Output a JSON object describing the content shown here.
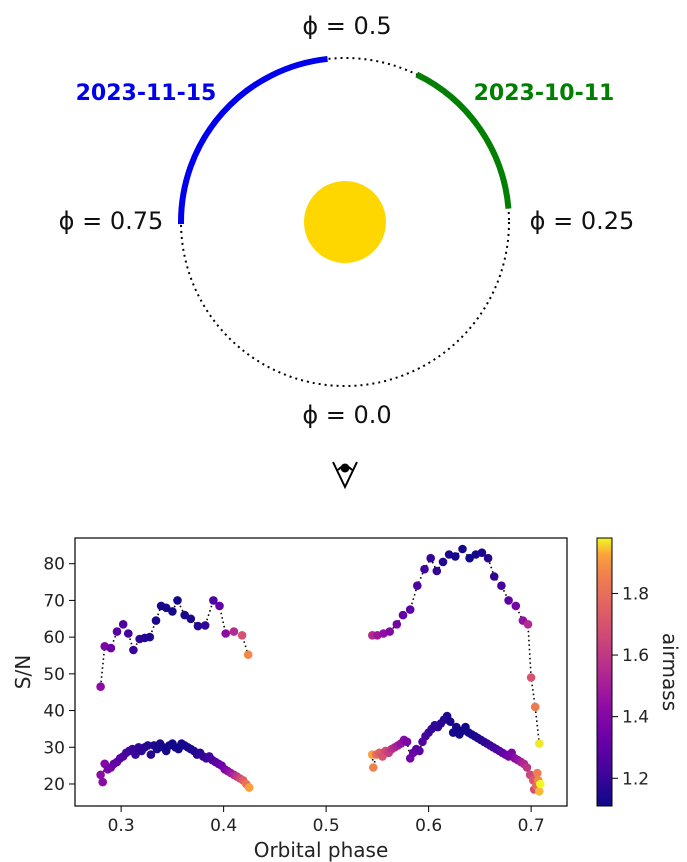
{
  "orbit_diagram": {
    "phase_labels": [
      {
        "id": "top",
        "text": "ϕ = 0.5"
      },
      {
        "id": "right",
        "text": "ϕ = 0.25"
      },
      {
        "id": "bottom",
        "text": "ϕ = 0.0"
      },
      {
        "id": "left",
        "text": "ϕ = 0.75"
      }
    ],
    "observations": [
      {
        "date": "2023-11-15",
        "color": "#0000ee",
        "phase_start": 0.517,
        "phase_end": 0.752
      },
      {
        "date": "2023-10-11",
        "color": "#007f00",
        "phase_start": 0.263,
        "phase_end": 0.428
      }
    ],
    "star_color": "#ffd700",
    "observer_icon": "observer-eye-icon"
  },
  "chart_data": {
    "type": "scatter",
    "xlabel": "Orbital phase",
    "ylabel": "S/N",
    "xlim": [
      0.255,
      0.735
    ],
    "ylim": [
      14,
      87
    ],
    "xticks": [
      0.3,
      0.4,
      0.5,
      0.6,
      0.7
    ],
    "yticks": [
      20,
      30,
      40,
      50,
      60,
      70,
      80
    ],
    "colorbar": {
      "label": "airmass",
      "colormap": "plasma",
      "range": [
        1.11,
        1.98
      ],
      "ticks": [
        1.2,
        1.4,
        1.6,
        1.8
      ]
    },
    "series": [
      {
        "values": [
          [
            0.28,
            46.5,
            1.43
          ],
          [
            0.284,
            57.5,
            1.38
          ],
          [
            0.29,
            57.0,
            1.33
          ],
          [
            0.296,
            61.5,
            1.28
          ],
          [
            0.302,
            63.5,
            1.25
          ],
          [
            0.307,
            61.0,
            1.22
          ],
          [
            0.312,
            56.5,
            1.2
          ],
          [
            0.318,
            59.5,
            1.18
          ],
          [
            0.323,
            59.8,
            1.16
          ],
          [
            0.328,
            60.0,
            1.15
          ],
          [
            0.334,
            64.5,
            1.14
          ],
          [
            0.339,
            68.5,
            1.13
          ],
          [
            0.344,
            68.0,
            1.13
          ],
          [
            0.35,
            67.0,
            1.12
          ],
          [
            0.355,
            70.0,
            1.12
          ],
          [
            0.362,
            66.0,
            1.13
          ],
          [
            0.368,
            65.0,
            1.14
          ],
          [
            0.375,
            63.0,
            1.16
          ],
          [
            0.382,
            63.2,
            1.19
          ],
          [
            0.39,
            70.0,
            1.25
          ],
          [
            0.396,
            68.5,
            1.31
          ],
          [
            0.402,
            61.0,
            1.42
          ],
          [
            0.41,
            61.5,
            1.55
          ],
          [
            0.418,
            60.5,
            1.7
          ],
          [
            0.424,
            55.2,
            1.88
          ]
        ]
      },
      {
        "values": [
          [
            0.28,
            22.5,
            1.43
          ],
          [
            0.282,
            20.5,
            1.42
          ],
          [
            0.284,
            25.5,
            1.4
          ],
          [
            0.287,
            24.0,
            1.37
          ],
          [
            0.29,
            24.5,
            1.35
          ],
          [
            0.293,
            25.5,
            1.32
          ],
          [
            0.296,
            26.0,
            1.3
          ],
          [
            0.299,
            27.0,
            1.28
          ],
          [
            0.302,
            27.5,
            1.26
          ],
          [
            0.305,
            28.5,
            1.24
          ],
          [
            0.308,
            29.0,
            1.23
          ],
          [
            0.311,
            29.5,
            1.21
          ],
          [
            0.314,
            28.0,
            1.2
          ],
          [
            0.317,
            30.0,
            1.19
          ],
          [
            0.32,
            29.0,
            1.18
          ],
          [
            0.323,
            30.0,
            1.17
          ],
          [
            0.326,
            30.5,
            1.16
          ],
          [
            0.329,
            28.0,
            1.16
          ],
          [
            0.332,
            30.5,
            1.15
          ],
          [
            0.335,
            29.5,
            1.14
          ],
          [
            0.338,
            31.0,
            1.14
          ],
          [
            0.341,
            30.0,
            1.13
          ],
          [
            0.344,
            29.0,
            1.13
          ],
          [
            0.347,
            30.5,
            1.13
          ],
          [
            0.35,
            31.0,
            1.12
          ],
          [
            0.353,
            30.0,
            1.12
          ],
          [
            0.356,
            29.5,
            1.12
          ],
          [
            0.359,
            31.0,
            1.12
          ],
          [
            0.362,
            30.5,
            1.13
          ],
          [
            0.365,
            30.0,
            1.13
          ],
          [
            0.368,
            29.5,
            1.14
          ],
          [
            0.371,
            29.0,
            1.15
          ],
          [
            0.374,
            28.0,
            1.16
          ],
          [
            0.377,
            28.5,
            1.17
          ],
          [
            0.38,
            27.5,
            1.18
          ],
          [
            0.383,
            27.0,
            1.2
          ],
          [
            0.386,
            27.5,
            1.22
          ],
          [
            0.389,
            26.5,
            1.24
          ],
          [
            0.392,
            26.0,
            1.27
          ],
          [
            0.395,
            25.5,
            1.3
          ],
          [
            0.398,
            25.0,
            1.33
          ],
          [
            0.401,
            24.0,
            1.37
          ],
          [
            0.404,
            23.5,
            1.42
          ],
          [
            0.407,
            23.0,
            1.47
          ],
          [
            0.41,
            22.5,
            1.53
          ],
          [
            0.413,
            22.0,
            1.6
          ],
          [
            0.416,
            21.5,
            1.67
          ],
          [
            0.419,
            21.0,
            1.74
          ],
          [
            0.422,
            20.0,
            1.82
          ],
          [
            0.425,
            19.0,
            1.92
          ]
        ]
      },
      {
        "values": [
          [
            0.545,
            60.5,
            1.55
          ],
          [
            0.55,
            60.5,
            1.48
          ],
          [
            0.556,
            61.0,
            1.44
          ],
          [
            0.562,
            61.5,
            1.4
          ],
          [
            0.569,
            63.5,
            1.36
          ],
          [
            0.575,
            66.0,
            1.32
          ],
          [
            0.582,
            67.5,
            1.29
          ],
          [
            0.589,
            74.0,
            1.25
          ],
          [
            0.596,
            78.5,
            1.22
          ],
          [
            0.602,
            81.5,
            1.2
          ],
          [
            0.608,
            78.0,
            1.18
          ],
          [
            0.614,
            80.5,
            1.16
          ],
          [
            0.62,
            82.5,
            1.14
          ],
          [
            0.626,
            82.0,
            1.13
          ],
          [
            0.633,
            84.0,
            1.12
          ],
          [
            0.64,
            81.5,
            1.12
          ],
          [
            0.646,
            82.5,
            1.13
          ],
          [
            0.652,
            83.0,
            1.14
          ],
          [
            0.658,
            81.5,
            1.16
          ],
          [
            0.664,
            76.5,
            1.19
          ],
          [
            0.671,
            74.0,
            1.23
          ],
          [
            0.678,
            70.0,
            1.29
          ],
          [
            0.685,
            68.5,
            1.36
          ],
          [
            0.692,
            64.5,
            1.45
          ],
          [
            0.697,
            63.5,
            1.55
          ],
          [
            0.7,
            49.0,
            1.7
          ],
          [
            0.704,
            41.0,
            1.84
          ],
          [
            0.708,
            31.0,
            1.97
          ]
        ]
      },
      {
        "values": [
          [
            0.545,
            28.0,
            1.92
          ],
          [
            0.546,
            24.5,
            1.86
          ],
          [
            0.549,
            28.0,
            1.8
          ],
          [
            0.552,
            28.5,
            1.74
          ],
          [
            0.555,
            27.5,
            1.7
          ],
          [
            0.558,
            29.0,
            1.66
          ],
          [
            0.561,
            28.5,
            1.62
          ],
          [
            0.564,
            29.5,
            1.58
          ],
          [
            0.567,
            30.0,
            1.54
          ],
          [
            0.57,
            30.5,
            1.5
          ],
          [
            0.573,
            31.0,
            1.46
          ],
          [
            0.576,
            32.0,
            1.42
          ],
          [
            0.579,
            31.5,
            1.38
          ],
          [
            0.582,
            27.0,
            1.35
          ],
          [
            0.585,
            28.5,
            1.33
          ],
          [
            0.588,
            29.5,
            1.3
          ],
          [
            0.591,
            29.0,
            1.28
          ],
          [
            0.594,
            31.5,
            1.26
          ],
          [
            0.597,
            33.0,
            1.24
          ],
          [
            0.6,
            34.0,
            1.22
          ],
          [
            0.603,
            35.0,
            1.2
          ],
          [
            0.606,
            36.0,
            1.19
          ],
          [
            0.609,
            35.5,
            1.18
          ],
          [
            0.612,
            36.5,
            1.17
          ],
          [
            0.615,
            37.5,
            1.16
          ],
          [
            0.618,
            38.5,
            1.15
          ],
          [
            0.621,
            37.0,
            1.14
          ],
          [
            0.624,
            34.0,
            1.13
          ],
          [
            0.627,
            35.5,
            1.13
          ],
          [
            0.63,
            33.5,
            1.12
          ],
          [
            0.633,
            34.5,
            1.12
          ],
          [
            0.636,
            35.5,
            1.12
          ],
          [
            0.639,
            34.0,
            1.13
          ],
          [
            0.642,
            33.5,
            1.13
          ],
          [
            0.645,
            33.0,
            1.14
          ],
          [
            0.648,
            32.5,
            1.15
          ],
          [
            0.651,
            32.0,
            1.16
          ],
          [
            0.654,
            31.5,
            1.17
          ],
          [
            0.657,
            31.0,
            1.18
          ],
          [
            0.66,
            30.5,
            1.2
          ],
          [
            0.663,
            30.0,
            1.22
          ],
          [
            0.666,
            29.5,
            1.24
          ],
          [
            0.669,
            29.0,
            1.26
          ],
          [
            0.672,
            28.5,
            1.29
          ],
          [
            0.675,
            28.0,
            1.32
          ],
          [
            0.678,
            27.5,
            1.35
          ],
          [
            0.681,
            28.5,
            1.38
          ],
          [
            0.684,
            27.0,
            1.41
          ],
          [
            0.687,
            26.5,
            1.45
          ],
          [
            0.69,
            26.0,
            1.49
          ],
          [
            0.693,
            25.5,
            1.54
          ],
          [
            0.696,
            24.5,
            1.59
          ],
          [
            0.699,
            22.5,
            1.65
          ],
          [
            0.702,
            21.0,
            1.72
          ],
          [
            0.703,
            18.5,
            1.68
          ],
          [
            0.705,
            19.5,
            1.8
          ],
          [
            0.706,
            23.0,
            1.85
          ],
          [
            0.707,
            21.0,
            1.88
          ],
          [
            0.708,
            18.0,
            1.94
          ],
          [
            0.709,
            20.0,
            1.98
          ]
        ]
      }
    ]
  }
}
